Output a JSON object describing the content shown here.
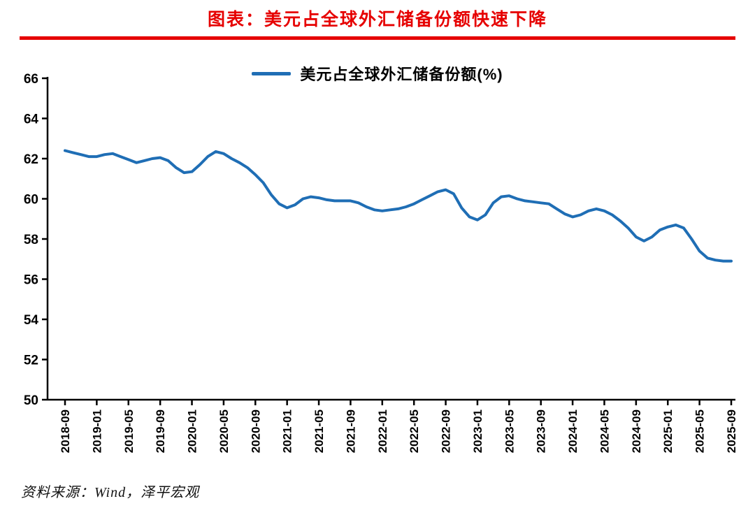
{
  "page": {
    "title": "图表：美元占全球外汇储备份额快速下降",
    "source": "资料来源：Wind，泽平宏观"
  },
  "colors": {
    "title_red": "#e60000",
    "rule_red": "#e60000",
    "line_blue": "#1f6eb5",
    "axis_black": "#000000"
  },
  "legend": {
    "label": "美元占全球外汇储备份额(%)"
  },
  "chart_data": {
    "type": "line",
    "title": "图表：美元占全球外汇储备份额快速下降",
    "series_name": "美元占全球外汇储备份额(%)",
    "xlabel": "",
    "ylabel": "",
    "ylim": [
      50,
      66
    ],
    "yticks": [
      50,
      52,
      54,
      56,
      58,
      60,
      62,
      64,
      66
    ],
    "grid": false,
    "legend_position": "top-center",
    "xtick_every": 4,
    "xtick_labels": [
      "2018-09",
      "2019-01",
      "2019-05",
      "2019-09",
      "2020-01",
      "2020-05",
      "2020-09",
      "2021-01",
      "2021-05",
      "2021-09",
      "2022-01",
      "2022-05",
      "2022-09",
      "2023-01",
      "2023-05",
      "2023-09",
      "2024-01",
      "2024-05",
      "2024-09",
      "2025-01",
      "2025-05",
      "2025-09"
    ],
    "x": [
      "2018-09",
      "2018-10",
      "2018-11",
      "2018-12",
      "2019-01",
      "2019-02",
      "2019-03",
      "2019-04",
      "2019-05",
      "2019-06",
      "2019-07",
      "2019-08",
      "2019-09",
      "2019-10",
      "2019-11",
      "2019-12",
      "2020-01",
      "2020-02",
      "2020-03",
      "2020-04",
      "2020-05",
      "2020-06",
      "2020-07",
      "2020-08",
      "2020-09",
      "2020-10",
      "2020-11",
      "2020-12",
      "2021-01",
      "2021-02",
      "2021-03",
      "2021-04",
      "2021-05",
      "2021-06",
      "2021-07",
      "2021-08",
      "2021-09",
      "2021-10",
      "2021-11",
      "2021-12",
      "2022-01",
      "2022-02",
      "2022-03",
      "2022-04",
      "2022-05",
      "2022-06",
      "2022-07",
      "2022-08",
      "2022-09",
      "2022-10",
      "2022-11",
      "2022-12",
      "2023-01",
      "2023-02",
      "2023-03",
      "2023-04",
      "2023-05",
      "2023-06",
      "2023-07",
      "2023-08",
      "2023-09",
      "2023-10",
      "2023-11",
      "2023-12",
      "2024-01",
      "2024-02",
      "2024-03",
      "2024-04",
      "2024-05",
      "2024-06",
      "2024-07",
      "2024-08",
      "2024-09",
      "2024-10",
      "2024-11",
      "2024-12",
      "2025-01",
      "2025-02",
      "2025-03",
      "2025-04",
      "2025-05",
      "2025-06",
      "2025-07",
      "2025-08",
      "2025-09"
    ],
    "values": [
      62.4,
      62.3,
      62.2,
      62.1,
      62.1,
      62.2,
      62.25,
      62.1,
      61.95,
      61.8,
      61.9,
      62.0,
      62.05,
      61.9,
      61.55,
      61.3,
      61.35,
      61.7,
      62.1,
      62.35,
      62.25,
      62.0,
      61.8,
      61.55,
      61.2,
      60.8,
      60.2,
      59.75,
      59.55,
      59.7,
      60.0,
      60.1,
      60.05,
      59.95,
      59.9,
      59.9,
      59.9,
      59.8,
      59.6,
      59.45,
      59.4,
      59.45,
      59.5,
      59.6,
      59.75,
      59.95,
      60.15,
      60.35,
      60.45,
      60.25,
      59.55,
      59.1,
      58.95,
      59.2,
      59.8,
      60.1,
      60.15,
      60.0,
      59.9,
      59.85,
      59.8,
      59.75,
      59.5,
      59.25,
      59.1,
      59.2,
      59.4,
      59.5,
      59.4,
      59.2,
      58.9,
      58.55,
      58.1,
      57.9,
      58.1,
      58.45,
      58.6,
      58.7,
      58.55,
      58.0,
      57.4,
      57.05,
      56.95,
      56.9,
      56.9
    ]
  }
}
